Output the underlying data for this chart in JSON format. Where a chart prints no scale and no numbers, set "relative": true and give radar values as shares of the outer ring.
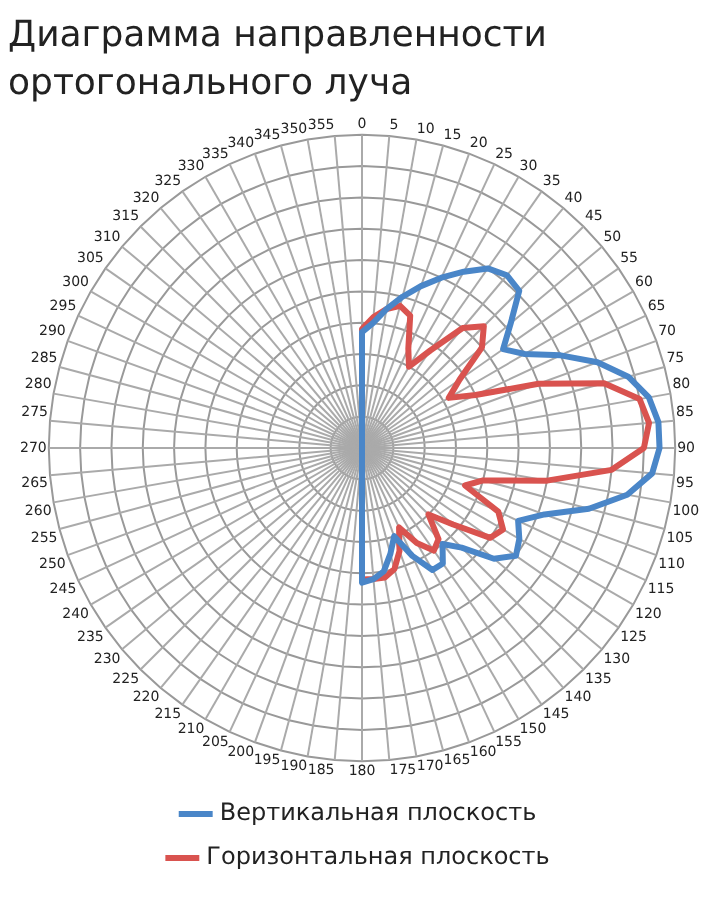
{
  "chart_data": {
    "type": "radar",
    "title": "Диаграмма направленности ортогонального луча",
    "relative": true,
    "grid": true,
    "legend": "bottom",
    "marker": "none",
    "categories": [
      "0",
      "5",
      "10",
      "15",
      "20",
      "25",
      "30",
      "35",
      "40",
      "45",
      "50",
      "55",
      "60",
      "65",
      "70",
      "75",
      "80",
      "85",
      "90",
      "95",
      "100",
      "105",
      "110",
      "115",
      "120",
      "125",
      "130",
      "135",
      "140",
      "145",
      "150",
      "155",
      "160",
      "165",
      "170",
      "175",
      "180",
      "185",
      "190",
      "195",
      "200",
      "205",
      "210",
      "215",
      "220",
      "225",
      "230",
      "235",
      "240",
      "245",
      "250",
      "255",
      "260",
      "265",
      "270",
      "275",
      "280",
      "285",
      "290",
      "295",
      "300",
      "305",
      "310",
      "315",
      "320",
      "325",
      "330",
      "335",
      "340",
      "345",
      "350",
      "355"
    ],
    "series": [
      {
        "name": "Вертикальная плоскость",
        "color": "#4a86c8",
        "values": [
          0.37,
          0.4,
          0.45,
          0.5,
          0.55,
          0.6,
          0.65,
          0.7,
          0.72,
          0.71,
          0.62,
          0.55,
          0.6,
          0.7,
          0.8,
          0.88,
          0.93,
          0.95,
          0.95,
          0.93,
          0.86,
          0.75,
          0.62,
          0.55,
          0.58,
          0.6,
          0.55,
          0.45,
          0.4,
          0.45,
          0.45,
          0.38,
          0.3,
          0.35,
          0.4,
          0.42,
          0.43,
          0,
          0,
          0,
          0,
          0,
          0,
          0,
          0,
          0,
          0,
          0,
          0,
          0,
          0,
          0,
          0,
          0,
          0,
          0,
          0,
          0,
          0,
          0,
          0,
          0,
          0,
          0,
          0,
          0,
          0,
          0,
          0,
          0,
          0,
          0
        ]
      },
      {
        "name": "Горизонтальная плоскость",
        "color": "#d9534f",
        "values": [
          0.38,
          0.42,
          0.45,
          0.47,
          0.45,
          0.35,
          0.3,
          0.38,
          0.5,
          0.55,
          0.5,
          0.38,
          0.32,
          0.4,
          0.6,
          0.8,
          0.9,
          0.92,
          0.9,
          0.8,
          0.6,
          0.4,
          0.35,
          0.48,
          0.52,
          0.5,
          0.38,
          0.3,
          0.38,
          0.4,
          0.35,
          0.28,
          0.35,
          0.4,
          0.42,
          0.42,
          0.42,
          0,
          0,
          0,
          0,
          0,
          0,
          0,
          0,
          0,
          0,
          0,
          0,
          0,
          0,
          0,
          0,
          0,
          0,
          0,
          0,
          0,
          0,
          0,
          0,
          0,
          0,
          0,
          0,
          0,
          0,
          0,
          0,
          0,
          0,
          0
        ]
      }
    ]
  }
}
